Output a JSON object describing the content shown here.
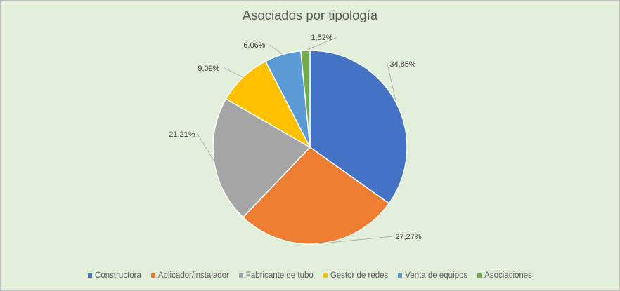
{
  "chart_data": {
    "type": "pie",
    "title": "Asociados por tipología",
    "categories": [
      "Constructora",
      "Aplicador/instalador",
      "Fabricante de tubo",
      "Gestor de redes",
      "Venta de equipos",
      "Asociaciones"
    ],
    "values": [
      34.85,
      27.27,
      21.21,
      9.09,
      6.06,
      1.52
    ],
    "labels": [
      "34,85%",
      "27,27%",
      "21,21%",
      "9,09%",
      "6,06%",
      "1,52%"
    ],
    "colors": [
      "#4472c4",
      "#ed7d31",
      "#a5a5a5",
      "#ffc000",
      "#5b9bd5",
      "#70ad47"
    ],
    "legend_position": "bottom"
  }
}
